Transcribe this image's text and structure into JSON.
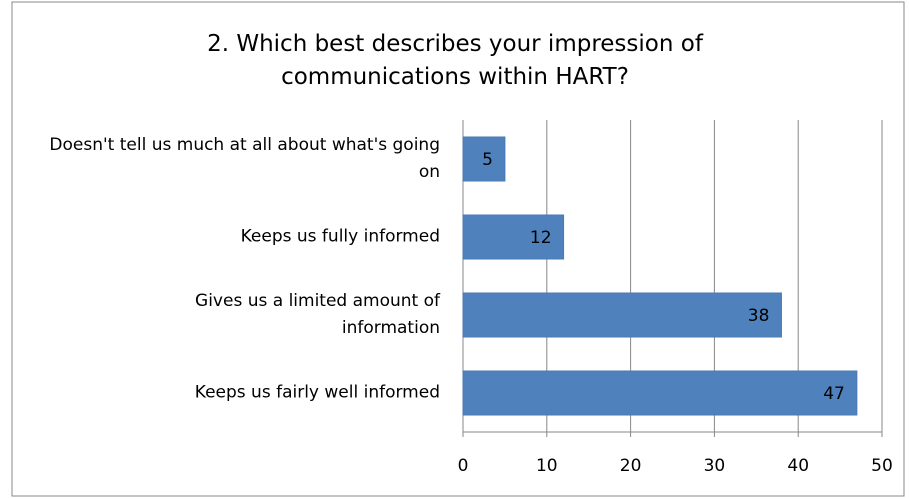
{
  "chart_data": {
    "type": "barh",
    "title": "2. Which best describes your impression of communications within HART?",
    "categories": [
      "Doesn't tell us much at all about what's going on",
      "Keeps us fully informed",
      "Gives us a limited amount of information",
      "Keeps us fairly well informed"
    ],
    "values": [
      5,
      12,
      38,
      47
    ],
    "color": "#4f81bd",
    "xlim": [
      0,
      50
    ],
    "xticks": [
      0,
      10,
      20,
      30,
      40,
      50
    ],
    "grid": true
  }
}
